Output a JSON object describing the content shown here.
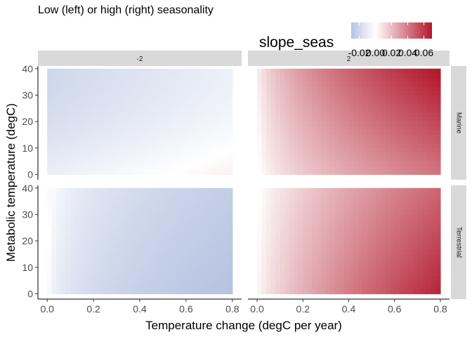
{
  "chart_data": {
    "type": "heatmap",
    "title": "Low (left) or high (right) seasonality",
    "xlabel": "Temperature change (degC per year)",
    "ylabel": "Metabolic temperature (degC)",
    "xlim": [
      -0.04,
      0.84
    ],
    "ylim": [
      -2,
      41
    ],
    "x_ticks": [
      0.0,
      0.2,
      0.4,
      0.6,
      0.8
    ],
    "x_tick_labels": [
      "0.0",
      "0.2",
      "0.4",
      "0.6",
      "0.8"
    ],
    "y_ticks": [
      0,
      10,
      20,
      30,
      40
    ],
    "y_tick_labels": [
      "0",
      "10",
      "20",
      "30",
      "40"
    ],
    "column_strips": [
      "-2",
      "2"
    ],
    "row_strips": [
      "Marine",
      "Terrestrial"
    ],
    "legend": {
      "title": "slope_seas",
      "position": "top-right",
      "ticks": [
        -0.02,
        0.0,
        0.02,
        0.04,
        0.06
      ],
      "tick_labels": [
        "-0.02",
        "0.00",
        "0.02",
        "0.04",
        "0.06"
      ],
      "range": [
        -0.03,
        0.07
      ],
      "low_color": "#b6c3e1",
      "mid_color": "#ffffff",
      "high_color": "#b2182b"
    },
    "panels": [
      {
        "column": "-2",
        "row": "Marine",
        "x_range": [
          0,
          0.8
        ],
        "y_range": [
          0,
          40
        ],
        "value_min": -0.02,
        "value_max": 0.004,
        "pattern": "white at low x and high y, blue toward high x and low y"
      },
      {
        "column": "2",
        "row": "Marine",
        "x_range": [
          0,
          0.8
        ],
        "y_range": [
          0,
          40
        ],
        "value_min": 0.0,
        "value_max": 0.07,
        "pattern": "white at x=0 low y, deep red at high x and high y"
      },
      {
        "column": "-2",
        "row": "Terrestrial",
        "x_range": [
          0,
          0.8
        ],
        "y_range": [
          0,
          40
        ],
        "value_min": -0.03,
        "value_max": 0.002,
        "pattern": "mostly blue, white only at x near 0 and y near 40"
      },
      {
        "column": "2",
        "row": "Terrestrial",
        "x_range": [
          0,
          0.8
        ],
        "y_range": [
          0,
          40
        ],
        "value_min": 0.0,
        "value_max": 0.065,
        "pattern": "white at low x and high y, red toward high x and low y"
      }
    ],
    "grid": false
  },
  "colors": {
    "strip_fill": "#d9d9d9",
    "axis_line": "#000000",
    "tick_text": "#4d4d4d"
  }
}
